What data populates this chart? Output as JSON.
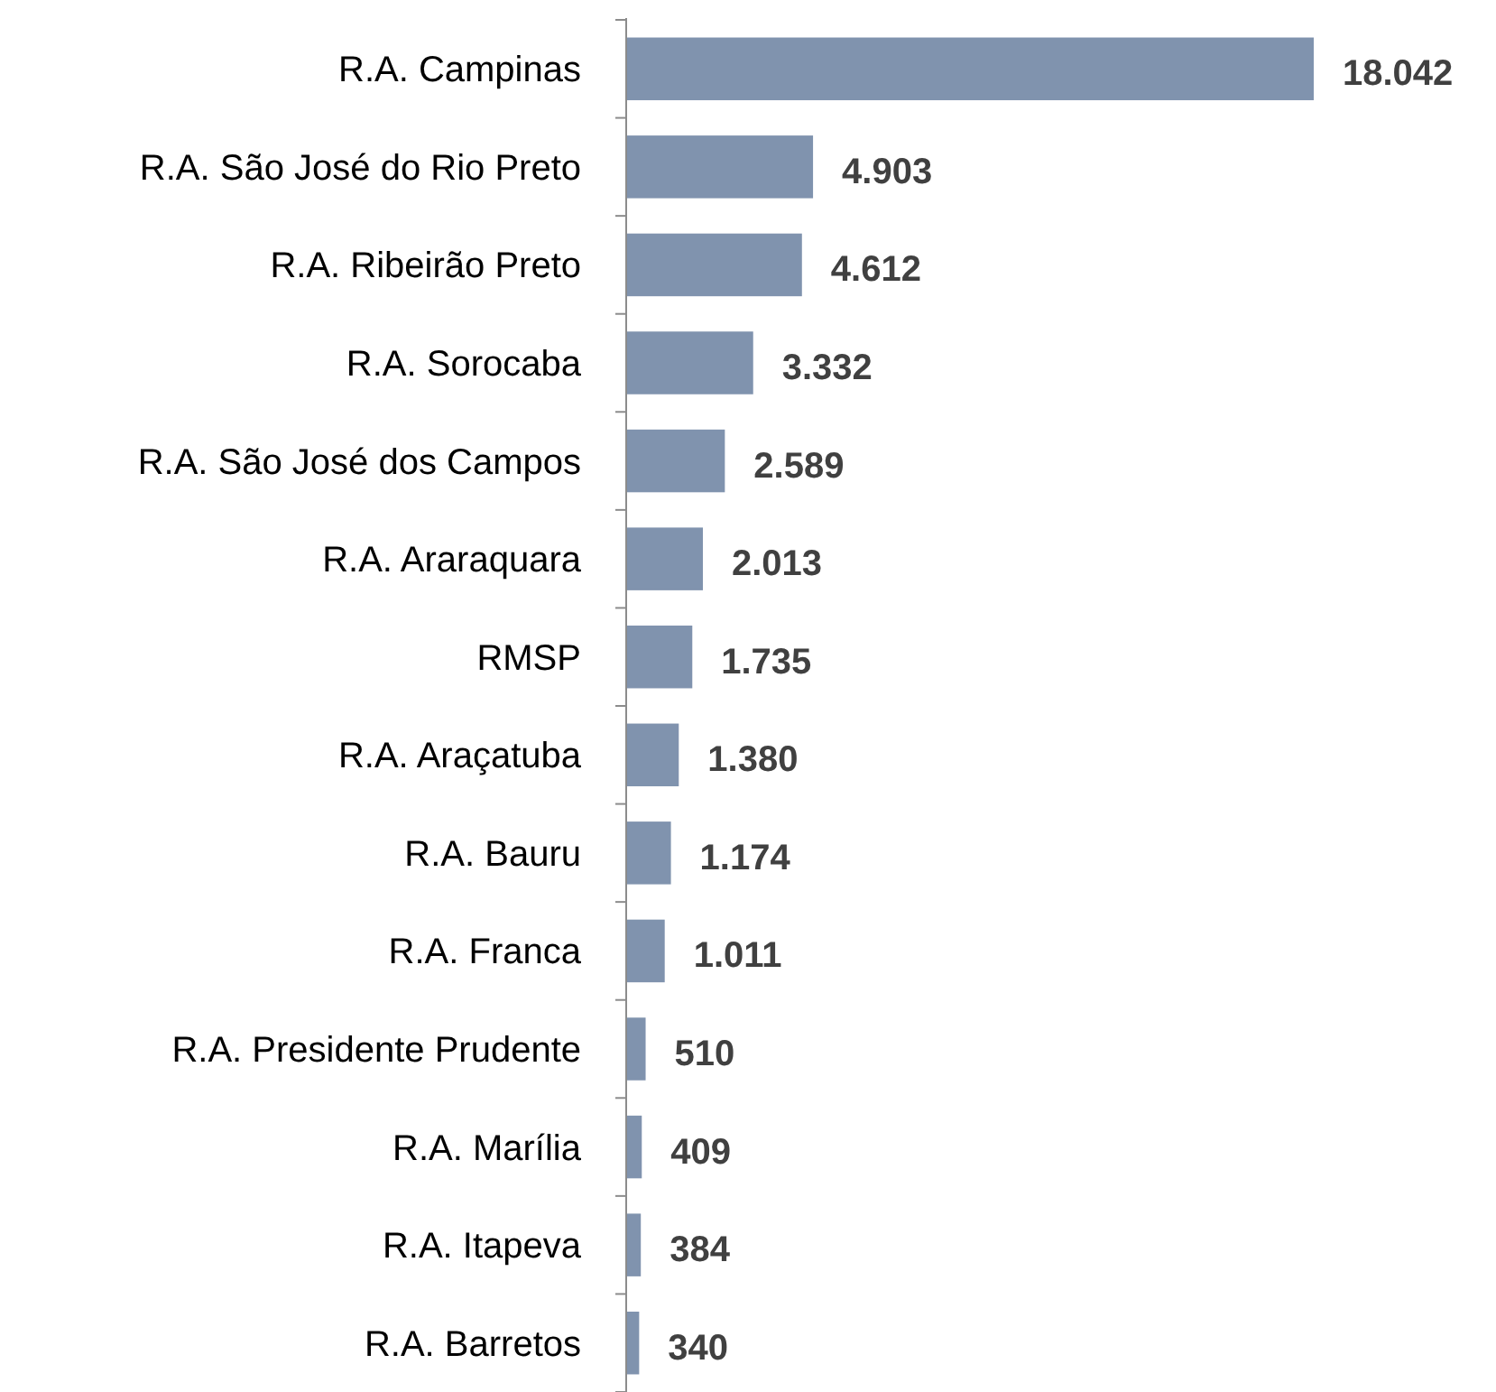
{
  "chart_data": {
    "type": "bar",
    "orientation": "horizontal",
    "categories": [
      "R.A. Campinas",
      "R.A. São José do Rio Preto",
      "R.A. Ribeirão Preto",
      "R.A. Sorocaba",
      "R.A. São José dos Campos",
      "R.A. Araraquara",
      "RMSP",
      "R.A. Araçatuba",
      "R.A. Bauru",
      "R.A. Franca",
      "R.A. Presidente Prudente",
      "R.A. Marília",
      "R.A. Itapeva",
      "R.A. Barretos"
    ],
    "values": [
      18042,
      4903,
      4612,
      3332,
      2589,
      2013,
      1735,
      1380,
      1174,
      1011,
      510,
      409,
      384,
      340
    ],
    "value_labels": [
      "18.042",
      "4.903",
      "4.612",
      "3.332",
      "2.589",
      "2.013",
      "1.735",
      "1.380",
      "1.174",
      "1.011",
      "510",
      "409",
      "384",
      "340"
    ],
    "color": "#8093ae"
  }
}
